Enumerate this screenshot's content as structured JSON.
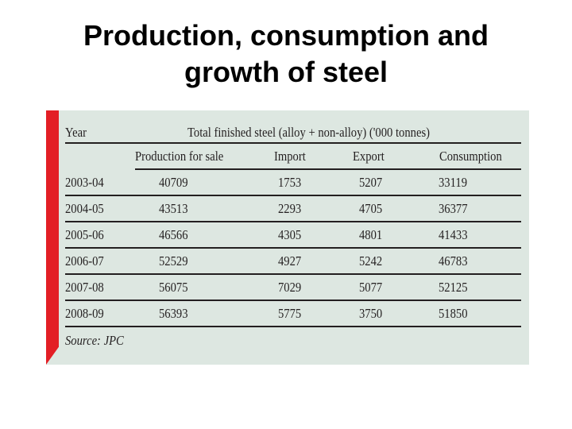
{
  "title_line1": "Production, consumption and",
  "title_line2": "growth of steel",
  "table": {
    "year_header": "Year",
    "span_header": "Total finished steel (alloy + non-alloy) ('000 tonnes)",
    "columns": [
      "Production for sale",
      "Import",
      "Export",
      "Consumption"
    ],
    "rows": [
      {
        "year": "2003-04",
        "production": "40709",
        "import": "1753",
        "export": "5207",
        "consumption": "33119"
      },
      {
        "year": "2004-05",
        "production": "43513",
        "import": "2293",
        "export": "4705",
        "consumption": "36377"
      },
      {
        "year": "2005-06",
        "production": "46566",
        "import": "4305",
        "export": "4801",
        "consumption": "41433"
      },
      {
        "year": "2006-07",
        "production": "52529",
        "import": "4927",
        "export": "5242",
        "consumption": "46783"
      },
      {
        "year": "2007-08",
        "production": "56075",
        "import": "7029",
        "export": "5077",
        "consumption": "52125"
      },
      {
        "year": "2008-09",
        "production": "56393",
        "import": "5775",
        "export": "3750",
        "consumption": "51850"
      }
    ],
    "source": "Source: JPC"
  },
  "colors": {
    "accent_red": "#e31e25",
    "panel_bg": "#dde7e1",
    "text": "#231f20"
  }
}
